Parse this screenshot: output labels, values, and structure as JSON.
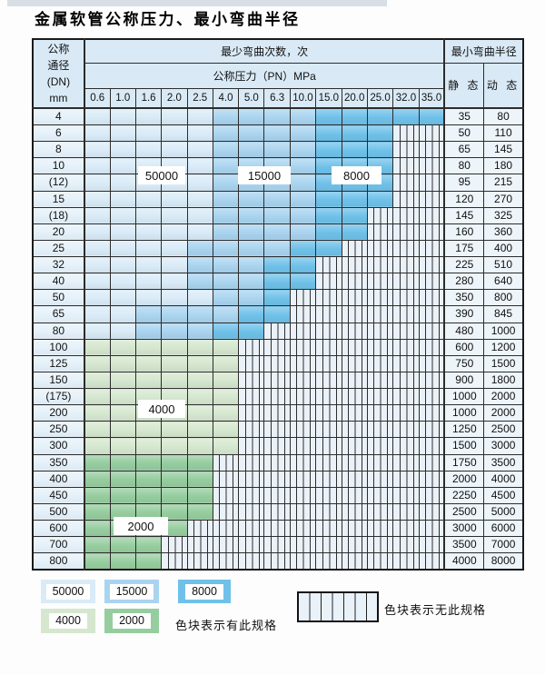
{
  "title": "金属软管公称压力、最小弯曲半径",
  "table": {
    "header": {
      "dn_lines": [
        "公称",
        "通径",
        "(DN)",
        "mm"
      ],
      "bend_cycles": "最少弯曲次数，次",
      "pressure": "公称压力（PN）MPa",
      "pressure_cols": [
        "0.6",
        "1.0",
        "1.6",
        "2.0",
        "2.5",
        "4.0",
        "5.0",
        "6.3",
        "10.0",
        "15.0",
        "20.0",
        "25.0",
        "32.0",
        "35.0"
      ],
      "radius": "最小弯曲半径",
      "static": "静 态",
      "dynamic": "动 态"
    },
    "rows": [
      {
        "dn": "4",
        "colored": 14,
        "palette": "blue",
        "zones": [
          5,
          4,
          5
        ],
        "static": "35",
        "dynamic": "80"
      },
      {
        "dn": "6",
        "colored": 12,
        "palette": "blue",
        "zones": [
          5,
          4,
          3
        ],
        "static": "50",
        "dynamic": "110"
      },
      {
        "dn": "8",
        "colored": 12,
        "palette": "blue",
        "zones": [
          5,
          4,
          3
        ],
        "static": "65",
        "dynamic": "145"
      },
      {
        "dn": "10",
        "colored": 12,
        "palette": "blue",
        "zones": [
          5,
          4,
          3
        ],
        "static": "80",
        "dynamic": "180"
      },
      {
        "dn": "(12)",
        "colored": 12,
        "palette": "blue",
        "zones": [
          5,
          4,
          3
        ],
        "static": "95",
        "dynamic": "215"
      },
      {
        "dn": "15",
        "colored": 12,
        "palette": "blue",
        "zones": [
          5,
          4,
          3
        ],
        "static": "120",
        "dynamic": "270"
      },
      {
        "dn": "(18)",
        "colored": 11,
        "palette": "blue",
        "zones": [
          5,
          4,
          2
        ],
        "static": "145",
        "dynamic": "325"
      },
      {
        "dn": "20",
        "colored": 11,
        "palette": "blue",
        "zones": [
          5,
          4,
          2
        ],
        "static": "160",
        "dynamic": "360"
      },
      {
        "dn": "25",
        "colored": 10,
        "palette": "blue",
        "zones": [
          4,
          4,
          2
        ],
        "static": "175",
        "dynamic": "400"
      },
      {
        "dn": "32",
        "colored": 9,
        "palette": "blue",
        "zones": [
          4,
          3,
          2
        ],
        "static": "225",
        "dynamic": "510"
      },
      {
        "dn": "40",
        "colored": 9,
        "palette": "blue",
        "zones": [
          4,
          3,
          2
        ],
        "static": "280",
        "dynamic": "640"
      },
      {
        "dn": "50",
        "colored": 8,
        "palette": "blue",
        "zones": [
          5,
          2,
          1
        ],
        "static": "350",
        "dynamic": "800"
      },
      {
        "dn": "65",
        "colored": 8,
        "palette": "blue",
        "zones": [
          2,
          4,
          2
        ],
        "static": "390",
        "dynamic": "845"
      },
      {
        "dn": "80",
        "colored": 7,
        "palette": "blue",
        "zones": [
          2,
          3,
          2
        ],
        "static": "480",
        "dynamic": "1000"
      },
      {
        "dn": "100",
        "colored": 6,
        "palette": "green_light",
        "static": "600",
        "dynamic": "1200"
      },
      {
        "dn": "125",
        "colored": 6,
        "palette": "green_light",
        "static": "750",
        "dynamic": "1500"
      },
      {
        "dn": "150",
        "colored": 6,
        "palette": "green_light",
        "static": "900",
        "dynamic": "1800"
      },
      {
        "dn": "(175)",
        "colored": 6,
        "palette": "green_light",
        "static": "1000",
        "dynamic": "2000"
      },
      {
        "dn": "200",
        "colored": 6,
        "palette": "green_light",
        "static": "1000",
        "dynamic": "2000"
      },
      {
        "dn": "250",
        "colored": 6,
        "palette": "green_light",
        "static": "1250",
        "dynamic": "2500"
      },
      {
        "dn": "300",
        "colored": 6,
        "palette": "green_light",
        "static": "1500",
        "dynamic": "3000"
      },
      {
        "dn": "350",
        "colored": 5,
        "palette": "green_dark",
        "static": "1750",
        "dynamic": "3500"
      },
      {
        "dn": "400",
        "colored": 5,
        "palette": "green_dark",
        "static": "2000",
        "dynamic": "4000"
      },
      {
        "dn": "450",
        "colored": 5,
        "palette": "green_dark",
        "static": "2250",
        "dynamic": "4500"
      },
      {
        "dn": "500",
        "colored": 5,
        "palette": "green_dark",
        "static": "2500",
        "dynamic": "5000"
      },
      {
        "dn": "600",
        "colored": 4,
        "palette": "green_dark",
        "static": "3000",
        "dynamic": "6000"
      },
      {
        "dn": "700",
        "colored": 3,
        "palette": "green_dark",
        "static": "3500",
        "dynamic": "7000"
      },
      {
        "dn": "800",
        "colored": 3,
        "palette": "green_dark",
        "static": "4000",
        "dynamic": "8000"
      }
    ]
  },
  "overlays": [
    {
      "label": "50000"
    },
    {
      "label": "15000"
    },
    {
      "label": "8000"
    },
    {
      "label": "4000"
    },
    {
      "label": "2000"
    }
  ],
  "legend": {
    "items": [
      {
        "label": "50000",
        "color": "#d9ebf7"
      },
      {
        "label": "15000",
        "color": "#a9d4ef"
      },
      {
        "label": "8000",
        "color": "#6fc1e9"
      },
      {
        "label": "4000",
        "color": "#d5e7cf"
      },
      {
        "label": "2000",
        "color": "#96cd9f"
      }
    ],
    "has_spec_text": "色块表示有此规格",
    "no_spec_text": "色块表示无此规格"
  },
  "colors": {
    "palettes": {
      "blue": [
        "#d9ebf7",
        "#a9d4ef",
        "#6fc1e9"
      ],
      "green_light": "#d5e7cf",
      "green_dark": "#96cd9f"
    },
    "hatch_bg": "#eaf1f8",
    "header_bg": "#d9eaf6"
  }
}
